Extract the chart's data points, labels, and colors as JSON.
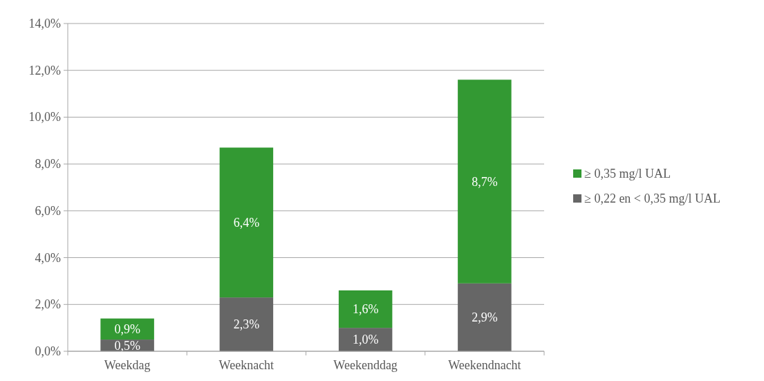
{
  "chart_data": {
    "type": "bar",
    "stacked": true,
    "categories": [
      "Weekdag",
      "Weeknacht",
      "Weekenddag",
      "Weekendnacht"
    ],
    "ylim": [
      0,
      14
    ],
    "yticks": [
      {
        "value": 0,
        "label": "0,0%"
      },
      {
        "value": 2,
        "label": "2,0%"
      },
      {
        "value": 4,
        "label": "4,0%"
      },
      {
        "value": 6,
        "label": "6,0%"
      },
      {
        "value": 8,
        "label": "8,0%"
      },
      {
        "value": 10,
        "label": "10,0%"
      },
      {
        "value": 12,
        "label": "12,0%"
      },
      {
        "value": 14,
        "label": "14,0%"
      }
    ],
    "grid": "y",
    "legend": "right",
    "series": [
      {
        "name": "≥ 0,22 en < 0,35 mg/l UAL",
        "color": "#666666",
        "values": [
          0.5,
          2.3,
          1.0,
          2.9
        ],
        "value_labels": [
          "0,5%",
          "2,3%",
          "1,0%",
          "2,9%"
        ]
      },
      {
        "name": "≥ 0,35 mg/l UAL",
        "color": "#339933",
        "values": [
          0.9,
          6.4,
          1.6,
          8.7
        ],
        "value_labels": [
          "0,9%",
          "6,4%",
          "1,6%",
          "8,7%"
        ]
      }
    ]
  }
}
